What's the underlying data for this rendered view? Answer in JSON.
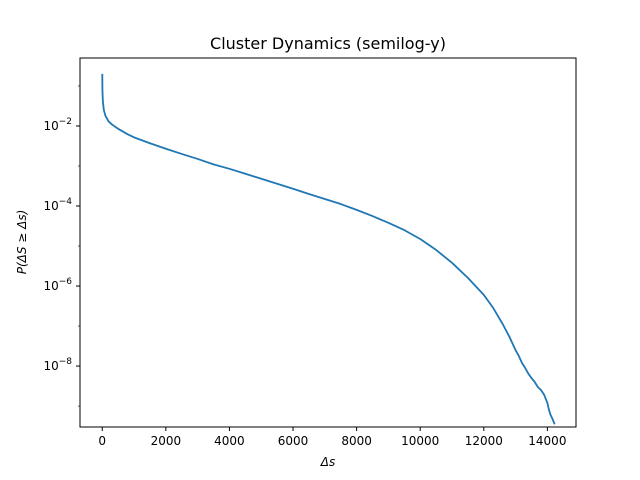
{
  "chart_data": {
    "type": "line",
    "title": "Cluster Dynamics (semilog-y)",
    "xlabel": "Δs",
    "ylabel": "P(ΔS ≥ Δs)",
    "yscale": "log",
    "xlim": [
      -700,
      14900
    ],
    "ylim": [
      3e-10,
      0.5
    ],
    "grid": false,
    "x_ticks": [
      {
        "value": 0,
        "label": "0"
      },
      {
        "value": 2000,
        "label": "2000"
      },
      {
        "value": 4000,
        "label": "4000"
      },
      {
        "value": 6000,
        "label": "6000"
      },
      {
        "value": 8000,
        "label": "8000"
      },
      {
        "value": 10000,
        "label": "10000"
      },
      {
        "value": 12000,
        "label": "12000"
      },
      {
        "value": 14000,
        "label": "14000"
      }
    ],
    "y_ticks": [
      {
        "exp": -8,
        "base": "10",
        "power": "−8"
      },
      {
        "exp": -6,
        "base": "10",
        "power": "−6"
      },
      {
        "exp": -4,
        "base": "10",
        "power": "−4"
      },
      {
        "exp": -2,
        "base": "10",
        "power": "−2"
      }
    ],
    "series": [
      {
        "color": "#1f77b4",
        "x": [
          1,
          5,
          20,
          50,
          100,
          200,
          300,
          500,
          800,
          1000,
          1500,
          2000,
          2500,
          3000,
          3500,
          4000,
          4500,
          5000,
          5500,
          6000,
          6500,
          7000,
          7500,
          8000,
          8500,
          9000,
          9500,
          10000,
          10500,
          11000,
          11500,
          12000,
          12300,
          12600,
          12800,
          13000,
          13100,
          13200,
          13300,
          13400,
          13500,
          13600,
          13700,
          13800,
          13900,
          14000,
          14050,
          14100,
          14150,
          14200,
          14230
        ],
        "y": [
          0.2,
          0.08,
          0.04,
          0.025,
          0.018,
          0.013,
          0.011,
          0.0085,
          0.0062,
          0.0052,
          0.0037,
          0.0027,
          0.002,
          0.0015,
          0.0011,
          0.00085,
          0.00064,
          0.00048,
          0.00036,
          0.00027,
          0.0002,
          0.00015,
          0.000112,
          8e-05,
          5.6e-05,
          3.8e-05,
          2.5e-05,
          1.5e-05,
          8e-06,
          3.8e-06,
          1.6e-06,
          6e-07,
          2.8e-07,
          1.1e-07,
          5.5e-08,
          2.5e-08,
          1.8e-08,
          1.2e-08,
          9e-09,
          6.5e-09,
          5e-09,
          4e-09,
          3e-09,
          2.5e-09,
          1.9e-09,
          1.2e-09,
          8e-10,
          6e-10,
          5e-10,
          4e-10,
          3.5e-10
        ]
      }
    ]
  }
}
